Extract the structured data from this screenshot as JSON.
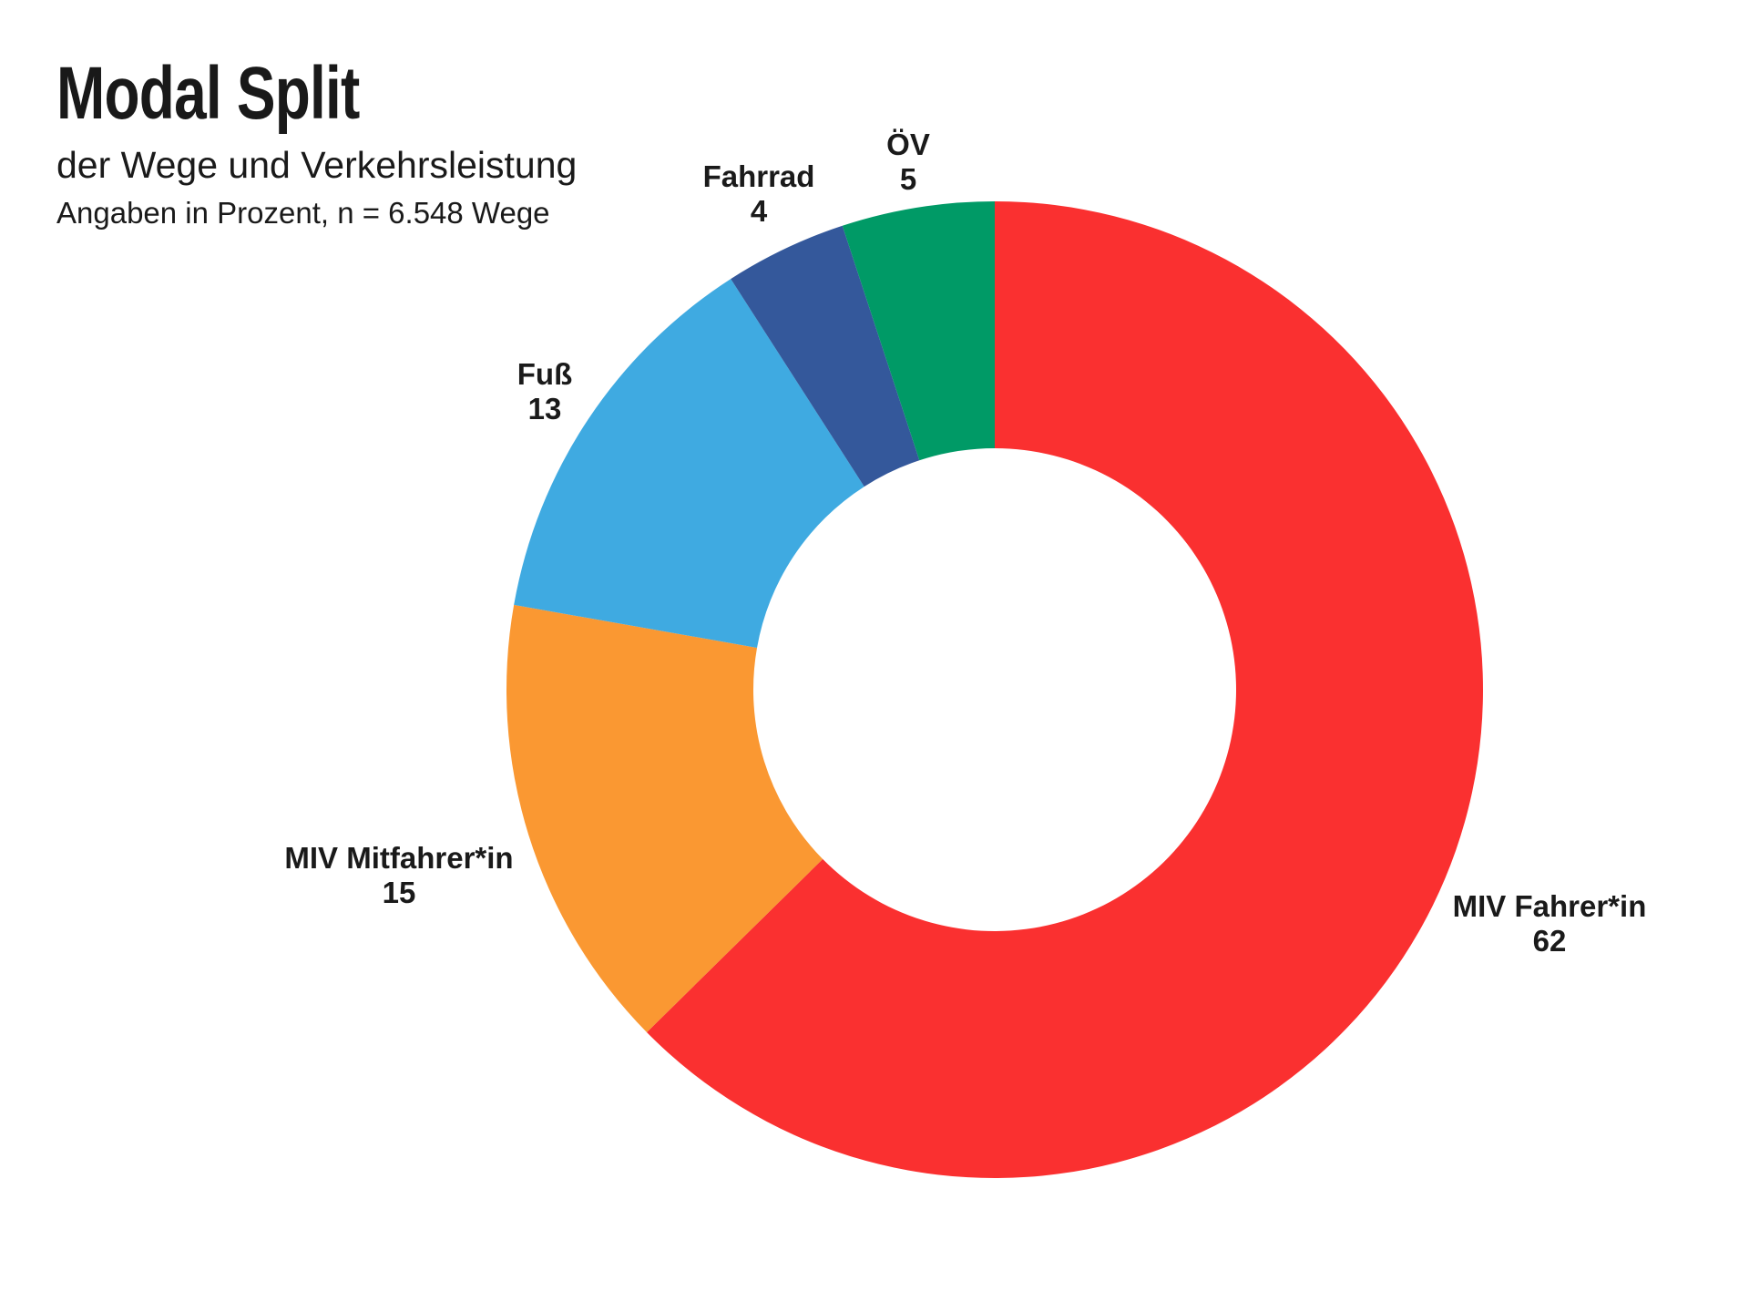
{
  "header": {
    "title": "Modal Split",
    "subtitle": "der Wege und Verkehrsleistung",
    "note": "Angaben in Prozent, n = 6.548 Wege"
  },
  "chart_data": {
    "type": "pie",
    "subtype": "donut",
    "title": "Modal Split",
    "subtitle": "der Wege und Verkehrsleistung",
    "note": "Angaben in Prozent, n = 6.548 Wege",
    "units": "percent",
    "sample_size_label": "n = 6.548 Wege",
    "start_angle_deg": 0,
    "direction": "clockwise",
    "legend": "none",
    "background_color": "#FFFFFF",
    "text_color": "#1A1A1A",
    "segments": [
      {
        "label": "MIV Fahrer*in",
        "value": 62,
        "color": "#FA3030"
      },
      {
        "label": "MIV Mitfahrer*in",
        "value": 15,
        "color": "#FA9832"
      },
      {
        "label": "Fuß",
        "value": 13,
        "color": "#3FAAE1"
      },
      {
        "label": "Fahrrad",
        "value": 4,
        "color": "#34589B"
      },
      {
        "label": "ÖV",
        "value": 5,
        "color": "#009A66"
      }
    ]
  }
}
